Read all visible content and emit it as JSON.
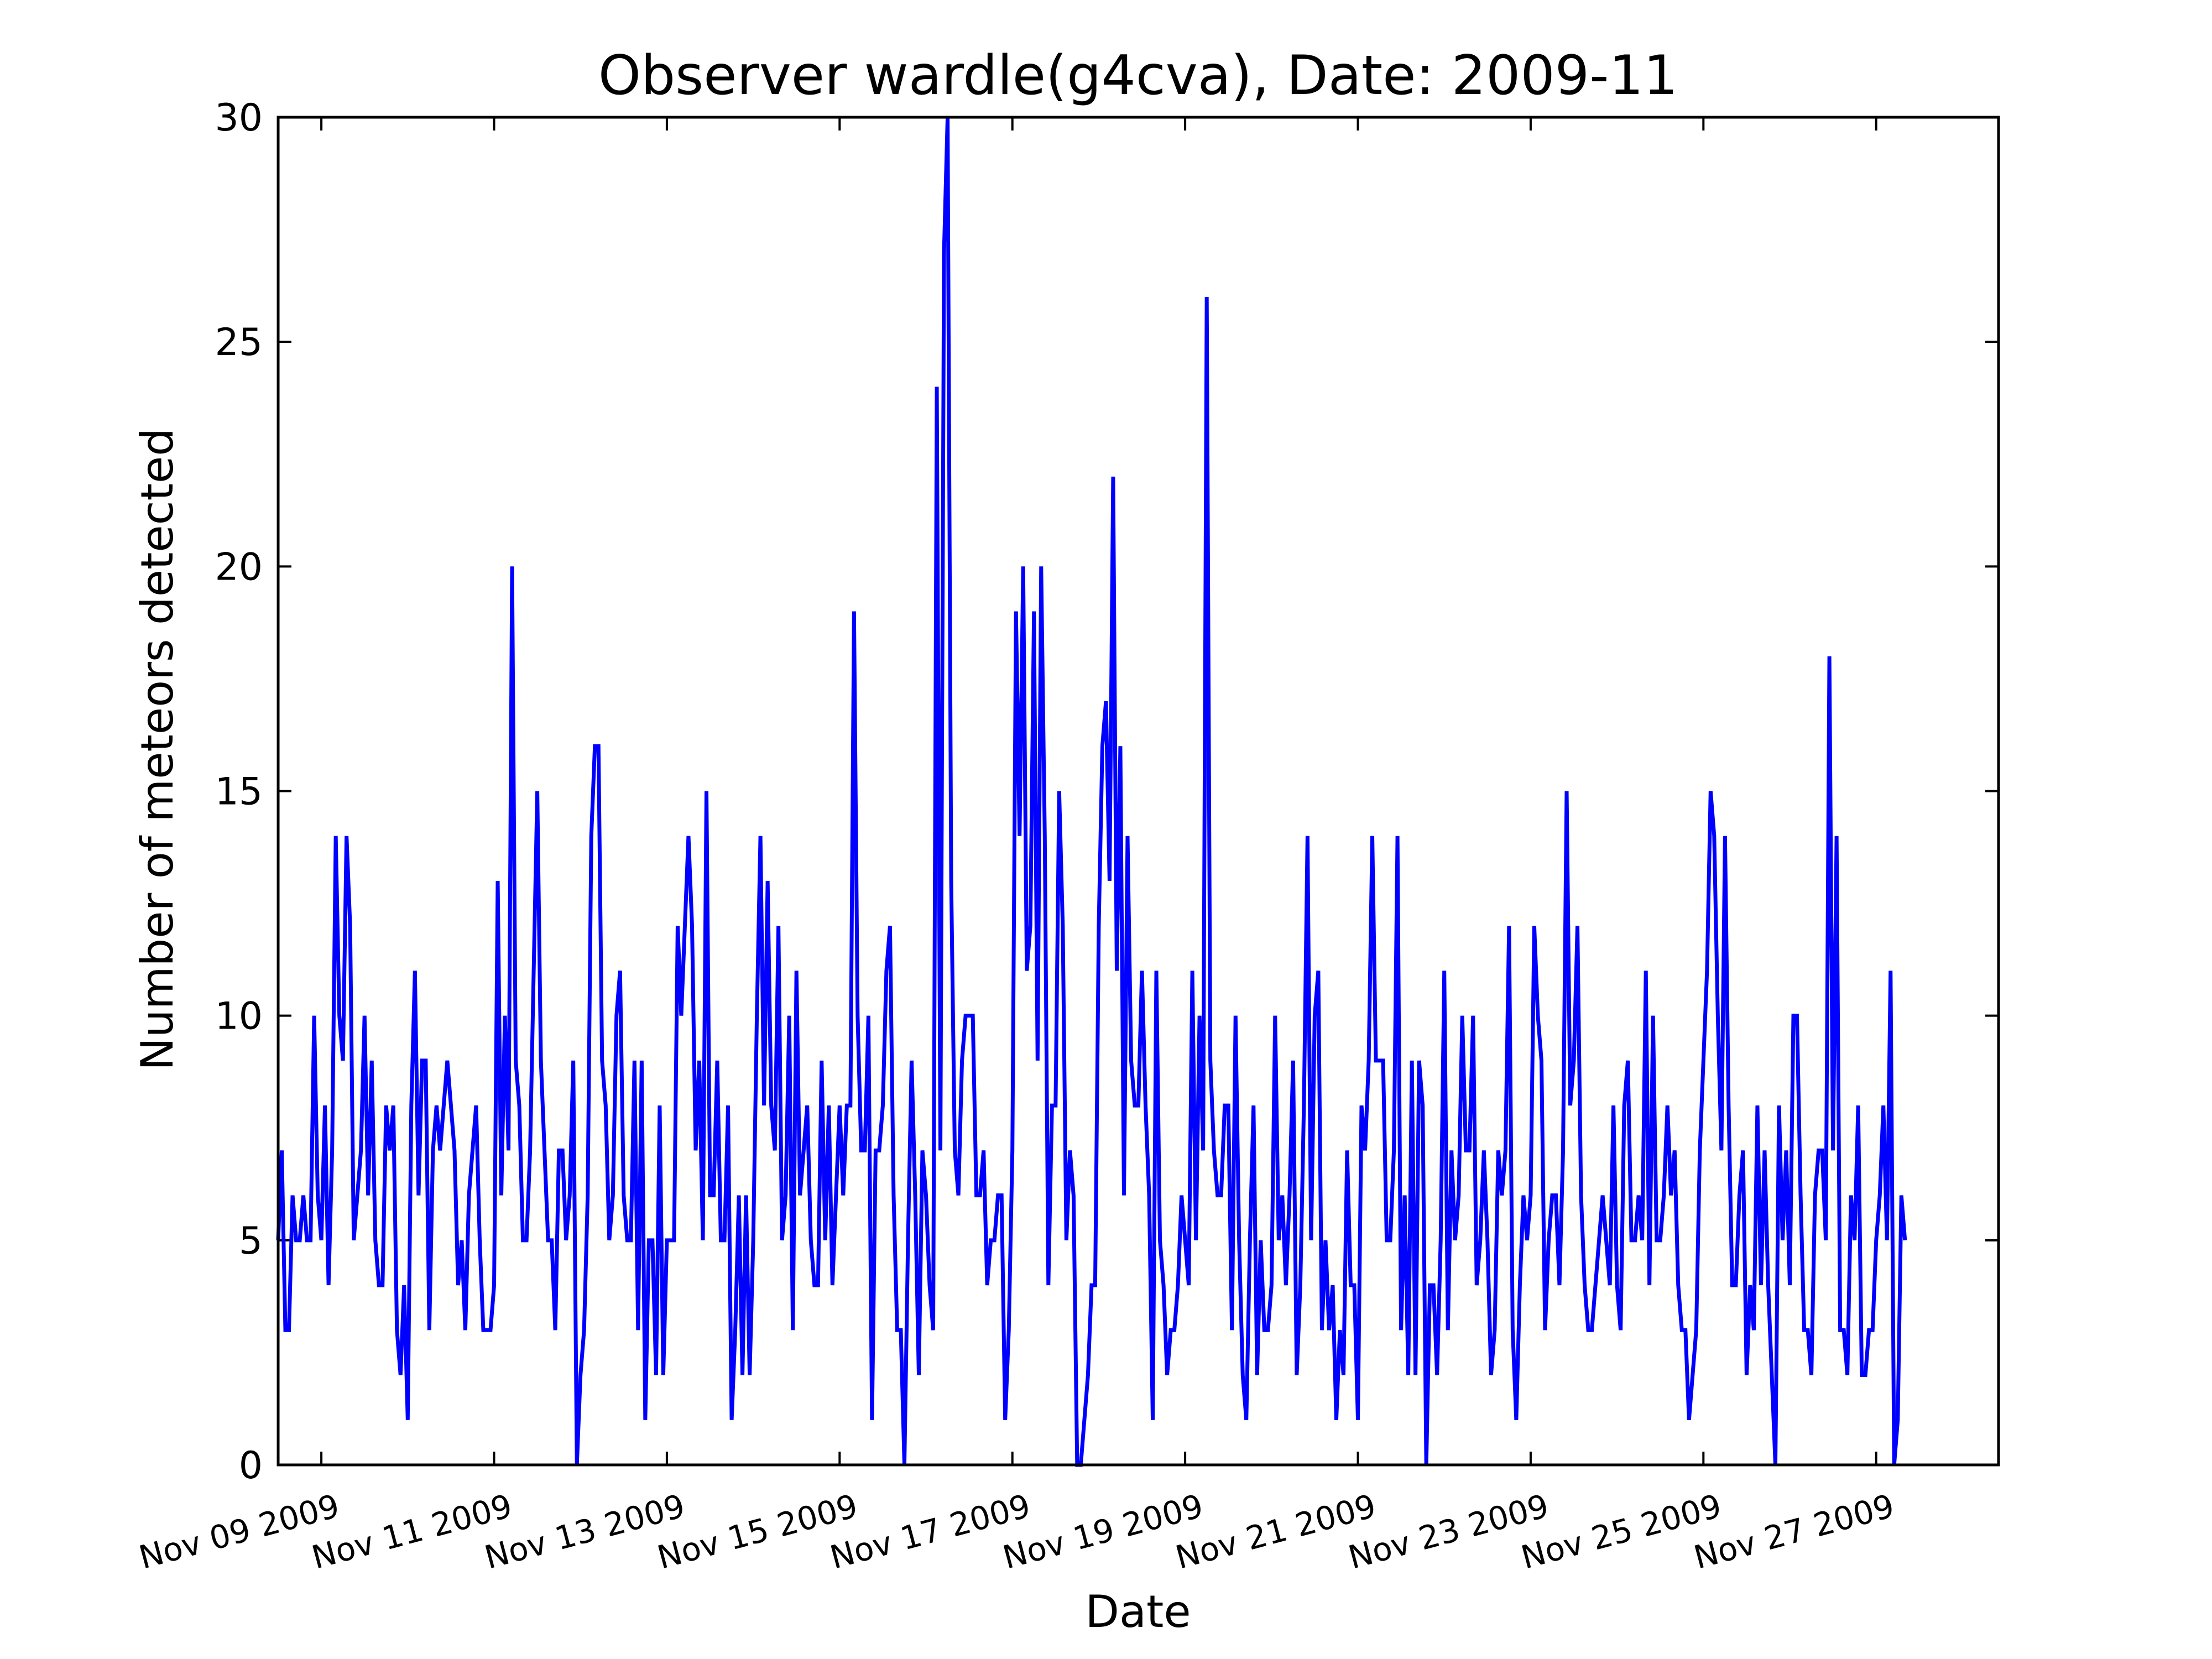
{
  "chart_data": {
    "type": "line",
    "title": "Observer wardle(g4cva), Date: 2009-11",
    "xlabel": "Date",
    "ylabel": "Number of meteors detected",
    "xlim": [
      "2009-11-08T12:00",
      "2009-11-28T10:00"
    ],
    "ylim": [
      0,
      30
    ],
    "grid": false,
    "legend": "none",
    "x_ticks": [
      "Nov 09 2009",
      "Nov 11 2009",
      "Nov 13 2009",
      "Nov 15 2009",
      "Nov 17 2009",
      "Nov 19 2009",
      "Nov 21 2009",
      "Nov 23 2009",
      "Nov 25 2009",
      "Nov 27 2009"
    ],
    "y_ticks": [
      "0",
      "5",
      "10",
      "15",
      "20",
      "25",
      "30"
    ],
    "time_step": "hourly",
    "series": [
      {
        "color": "#0000ff",
        "start": "2009-11-08T12:00",
        "values": [
          5,
          7,
          3,
          3,
          6,
          5,
          5,
          6,
          5,
          5,
          10,
          6,
          5,
          8,
          4,
          7,
          14,
          10,
          9,
          14,
          12,
          5,
          6,
          7,
          10,
          6,
          9,
          5,
          4,
          4,
          8,
          7,
          8,
          3,
          2,
          4,
          1,
          8,
          11,
          6,
          9,
          9,
          3,
          7,
          8,
          7,
          8,
          9,
          8,
          7,
          4,
          5,
          3,
          6,
          7,
          8,
          5,
          3,
          3,
          3,
          4,
          13,
          6,
          10,
          7,
          20,
          9,
          8,
          5,
          5,
          7,
          11,
          15,
          9,
          7,
          5,
          5,
          3,
          7,
          7,
          5,
          6,
          9,
          0,
          2,
          3,
          6,
          14,
          16,
          16,
          9,
          8,
          5,
          6,
          10,
          11,
          6,
          5,
          5,
          9,
          3,
          9,
          1,
          5,
          5,
          2,
          8,
          2,
          5,
          5,
          5,
          12,
          10,
          12,
          14,
          12,
          7,
          9,
          5,
          15,
          6,
          6,
          9,
          5,
          5,
          8,
          1,
          3,
          6,
          2,
          6,
          2,
          5,
          10,
          14,
          8,
          13,
          8,
          7,
          12,
          5,
          6,
          10,
          3,
          11,
          6,
          7,
          8,
          5,
          4,
          4,
          9,
          5,
          8,
          4,
          6,
          8,
          6,
          8,
          8,
          19,
          10,
          7,
          7,
          10,
          1,
          7,
          7,
          8,
          11,
          12,
          6,
          3,
          3,
          0,
          5,
          9,
          6,
          2,
          7,
          6,
          4,
          3,
          24,
          7,
          27,
          30,
          13,
          7,
          6,
          9,
          10,
          10,
          10,
          6,
          6,
          7,
          4,
          5,
          5,
          6,
          6,
          1,
          3,
          7,
          19,
          14,
          20,
          11,
          12,
          19,
          9,
          20,
          14,
          4,
          8,
          8,
          15,
          12,
          5,
          7,
          6,
          0,
          0,
          1,
          2,
          4,
          4,
          12,
          16,
          17,
          13,
          22,
          11,
          16,
          6,
          14,
          9,
          8,
          8,
          11,
          8,
          6,
          1,
          11,
          5,
          4,
          2,
          3,
          3,
          4,
          6,
          5,
          4,
          11,
          5,
          10,
          7,
          26,
          9,
          7,
          6,
          6,
          8,
          8,
          3,
          10,
          5,
          2,
          1,
          5,
          8,
          2,
          5,
          3,
          3,
          4,
          10,
          5,
          6,
          4,
          6,
          9,
          2,
          4,
          8,
          14,
          5,
          10,
          11,
          3,
          5,
          3,
          4,
          1,
          3,
          2,
          7,
          4,
          4,
          1,
          8,
          7,
          9,
          14,
          9,
          9,
          9,
          5,
          5,
          7,
          14,
          3,
          6,
          2,
          9,
          2,
          9,
          8,
          0,
          4,
          4,
          2,
          5,
          11,
          3,
          7,
          5,
          6,
          10,
          7,
          7,
          10,
          4,
          5,
          7,
          5,
          2,
          3,
          7,
          6,
          7,
          12,
          3,
          1,
          4,
          6,
          5,
          6,
          12,
          10,
          9,
          3,
          5,
          6,
          6,
          4,
          7,
          15,
          8,
          9,
          12,
          6,
          4,
          3,
          3,
          4,
          5,
          6,
          5,
          4,
          8,
          4,
          3,
          8,
          9,
          5,
          5,
          6,
          5,
          11,
          4,
          10,
          5,
          5,
          6,
          8,
          6,
          7,
          4,
          3,
          3,
          1,
          2,
          3,
          7,
          9,
          11,
          15,
          14,
          10,
          7,
          14,
          8,
          4,
          4,
          6,
          7,
          2,
          4,
          3,
          8,
          4,
          7,
          4,
          2,
          0,
          8,
          5,
          7,
          4,
          10,
          10,
          6,
          3,
          3,
          2,
          6,
          7,
          7,
          5,
          18,
          7,
          14,
          3,
          3,
          2,
          6,
          5,
          8,
          2,
          2,
          3,
          3,
          5,
          6,
          8,
          5,
          11,
          0,
          1,
          6,
          5
        ]
      }
    ]
  }
}
